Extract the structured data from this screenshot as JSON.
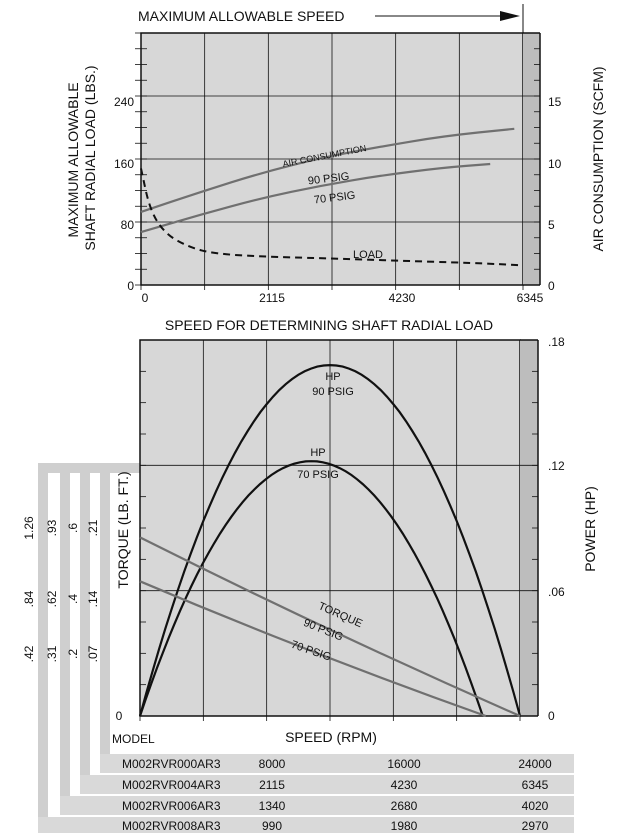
{
  "chart_data": [
    {
      "type": "line",
      "title": "MAXIMUM ALLOWABLE SPEED",
      "xlabel": "SPEED FOR DETERMINING SHAFT RADIAL LOAD",
      "ylabel_left": "MAXIMUM ALLOWABLE SHAFT RADIAL LOAD (LBS.)",
      "ylabel_right": "AIR CONSUMPTION (SCFM)",
      "x_ticks": [
        "0",
        "2115",
        "4230",
        "6345"
      ],
      "y_left_ticks": [
        "0",
        "80",
        "160",
        "240"
      ],
      "y_right_ticks": [
        "0",
        "5",
        "10",
        "15"
      ],
      "xlim": [
        0,
        6345
      ],
      "ylim_left": [
        0,
        320
      ],
      "ylim_right": [
        0,
        20
      ],
      "grid": true,
      "series": [
        {
          "name": "AIR CONSUMPTION 90 PSIG",
          "axis": "right",
          "x": [
            0,
            1000,
            2000,
            3000,
            4000,
            5000,
            6200
          ],
          "y": [
            5.8,
            7.4,
            8.9,
            10.1,
            11.0,
            11.8,
            12.4
          ]
        },
        {
          "name": "70 PSIG",
          "axis": "right",
          "x": [
            0,
            1000,
            2000,
            3000,
            4000,
            5000,
            5800
          ],
          "y": [
            4.2,
            5.6,
            6.9,
            7.9,
            8.7,
            9.3,
            9.6
          ]
        },
        {
          "name": "LOAD",
          "axis": "left",
          "x": [
            0,
            150,
            400,
            800,
            1200,
            2000,
            3000,
            4230,
            5500,
            6345
          ],
          "y": [
            148,
            95,
            65,
            48,
            40,
            36,
            34,
            31,
            28,
            25
          ]
        }
      ],
      "annotations": [
        "AIR CONSUMPTION",
        "90 PSIG",
        "70 PSIG",
        "LOAD"
      ]
    },
    {
      "type": "line",
      "xlabel": "SPEED (RPM)",
      "ylabel_left": "TORQUE (LB. FT.)",
      "ylabel_right": "POWER (HP)",
      "y_right_ticks": [
        ".18",
        ".12",
        ".06",
        "0"
      ],
      "ylim_right": [
        0,
        0.18
      ],
      "y_left_zero": "0",
      "grid": true,
      "series": [
        {
          "name": "HP 90 PSIG",
          "axis": "right",
          "shape": "parabola",
          "peak_x_fraction": 0.5,
          "peak": 0.168,
          "end_x_fraction": 1.0
        },
        {
          "name": "HP 70 PSIG",
          "axis": "right",
          "shape": "parabola",
          "peak_x_fraction": 0.5,
          "peak": 0.122,
          "end_x_fraction": 0.902
        },
        {
          "name": "TORQUE 90 PSIG",
          "axis": "right",
          "start": 0.0855,
          "end_x_fraction": 1.0
        },
        {
          "name": "TORQUE 70 PSIG",
          "axis": "right",
          "start": 0.0645,
          "end_x_fraction": 0.91
        }
      ],
      "annotations": [
        "HP",
        "90 PSIG",
        "HP",
        "70 PSIG",
        "TORQUE",
        "90 PSIG",
        "70 PSIG"
      ]
    }
  ],
  "torque_scales": [
    {
      "model": "M002RVR000AR3",
      "ticks": [
        ".07",
        ".14",
        ".21"
      ]
    },
    {
      "model": "M002RVR004AR3",
      "ticks": [
        ".2",
        ".4",
        ".6"
      ]
    },
    {
      "model": "M002RVR006AR3",
      "ticks": [
        ".31",
        ".62",
        ".93"
      ]
    },
    {
      "model": "M002RVR008AR3",
      "ticks": [
        ".42",
        ".84",
        "1.26"
      ]
    }
  ],
  "speed_table": {
    "header": "MODEL",
    "rows": [
      {
        "model": "M002RVR000AR3",
        "speeds": [
          "8000",
          "16000",
          "24000"
        ]
      },
      {
        "model": "M002RVR004AR3",
        "speeds": [
          "2115",
          "4230",
          "6345"
        ]
      },
      {
        "model": "M002RVR006AR3",
        "speeds": [
          "1340",
          "2680",
          "4020"
        ]
      },
      {
        "model": "M002RVR008AR3",
        "speeds": [
          "990",
          "1980",
          "2970"
        ]
      }
    ]
  }
}
